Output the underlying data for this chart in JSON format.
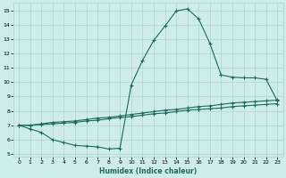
{
  "xlabel": "Humidex (Indice chaleur)",
  "background_color": "#ceecea",
  "grid_color": "#aed4d0",
  "line_color": "#1a6b60",
  "xlim": [
    -0.5,
    23.5
  ],
  "ylim": [
    4.8,
    15.5
  ],
  "xticks": [
    0,
    1,
    2,
    3,
    4,
    5,
    6,
    7,
    8,
    9,
    10,
    11,
    12,
    13,
    14,
    15,
    16,
    17,
    18,
    19,
    20,
    21,
    22,
    23
  ],
  "yticks": [
    5,
    6,
    7,
    8,
    9,
    10,
    11,
    12,
    13,
    14,
    15
  ],
  "line1_x": [
    0,
    1,
    2,
    3,
    4,
    5,
    6,
    7,
    8,
    9,
    10,
    11,
    12,
    13,
    14,
    15,
    16,
    17,
    18,
    19,
    20,
    21,
    22,
    23
  ],
  "line1_y": [
    7.0,
    6.75,
    6.5,
    6.0,
    5.8,
    5.6,
    5.55,
    5.5,
    5.35,
    5.4,
    9.8,
    11.5,
    12.9,
    13.9,
    14.95,
    15.1,
    14.4,
    12.7,
    10.5,
    10.35,
    10.3,
    10.3,
    10.2,
    8.7
  ],
  "line2_x": [
    0,
    1,
    2,
    3,
    4,
    5,
    6,
    7,
    8,
    9,
    10,
    11,
    12,
    13,
    14,
    15,
    16,
    17,
    18,
    19,
    20,
    21,
    22,
    23
  ],
  "line2_y": [
    7.0,
    7.0,
    7.1,
    7.2,
    7.25,
    7.3,
    7.4,
    7.5,
    7.55,
    7.65,
    7.75,
    7.85,
    7.95,
    8.05,
    8.1,
    8.2,
    8.3,
    8.35,
    8.45,
    8.55,
    8.6,
    8.65,
    8.7,
    8.75
  ],
  "line3_x": [
    0,
    1,
    2,
    3,
    4,
    5,
    6,
    7,
    8,
    9,
    10,
    11,
    12,
    13,
    14,
    15,
    16,
    17,
    18,
    19,
    20,
    21,
    22,
    23
  ],
  "line3_y": [
    7.0,
    7.0,
    7.05,
    7.1,
    7.15,
    7.2,
    7.3,
    7.35,
    7.45,
    7.55,
    7.6,
    7.7,
    7.8,
    7.85,
    7.95,
    8.05,
    8.1,
    8.15,
    8.2,
    8.3,
    8.35,
    8.4,
    8.45,
    8.5
  ]
}
